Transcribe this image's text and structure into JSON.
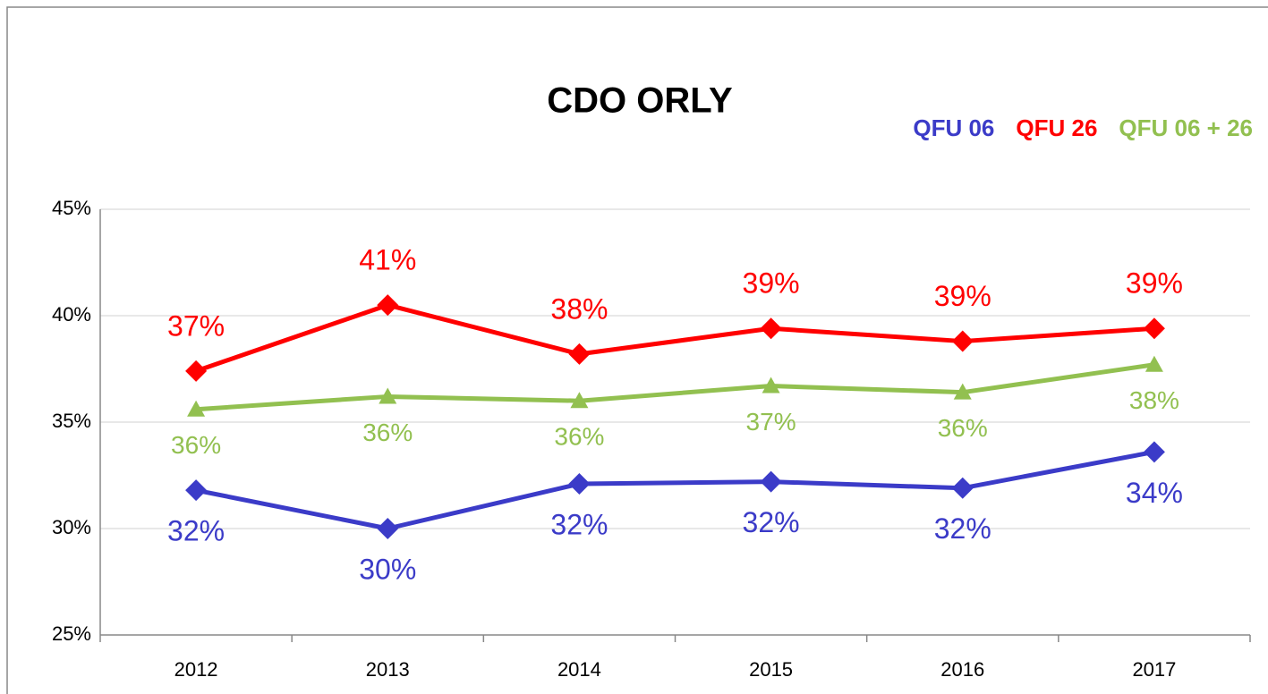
{
  "chart_data": {
    "type": "line",
    "title": "CDO ORLY",
    "categories": [
      "2012",
      "2013",
      "2014",
      "2015",
      "2016",
      "2017"
    ],
    "series": [
      {
        "name": "QFU 06",
        "color": "#3b3bc8",
        "marker": "diamond",
        "values": [
          31.8,
          30.0,
          32.1,
          32.2,
          31.9,
          33.6
        ],
        "value_labels": [
          "32%",
          "30%",
          "32%",
          "32%",
          "32%",
          "34%"
        ]
      },
      {
        "name": "QFU 26",
        "color": "#ff0000",
        "marker": "diamond",
        "values": [
          37.4,
          40.5,
          38.2,
          39.4,
          38.8,
          39.4
        ],
        "value_labels": [
          "37%",
          "41%",
          "38%",
          "39%",
          "39%",
          "39%"
        ]
      },
      {
        "name": "QFU 06 + 26",
        "color": "#92c050",
        "marker": "triangle",
        "values": [
          35.6,
          36.2,
          36.0,
          36.7,
          36.4,
          37.7
        ],
        "value_labels": [
          "36%",
          "36%",
          "36%",
          "37%",
          "36%",
          "38%"
        ]
      }
    ],
    "ylim": [
      25,
      45
    ],
    "yticks": [
      {
        "value": 25,
        "label": "25%"
      },
      {
        "value": 30,
        "label": "30%"
      },
      {
        "value": 35,
        "label": "35%"
      },
      {
        "value": 40,
        "label": "40%"
      },
      {
        "value": 45,
        "label": "45%"
      }
    ],
    "grid": true,
    "legend": "top-right"
  }
}
